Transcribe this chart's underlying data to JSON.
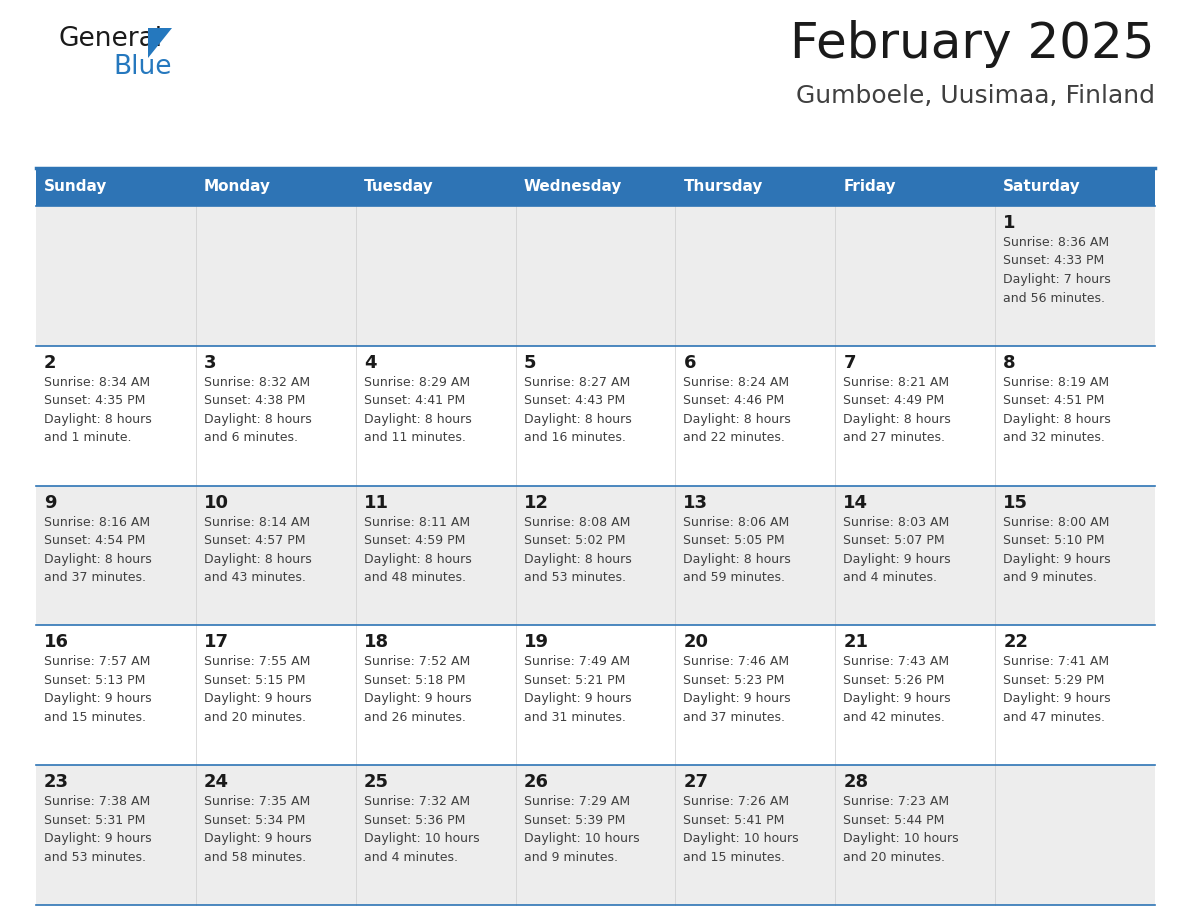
{
  "title": "February 2025",
  "subtitle": "Gumboele, Uusimaa, Finland",
  "header_bg": "#2E74B5",
  "header_text_color": "#FFFFFF",
  "header_font_size": 11,
  "day_names": [
    "Sunday",
    "Monday",
    "Tuesday",
    "Wednesday",
    "Thursday",
    "Friday",
    "Saturday"
  ],
  "title_font_size": 36,
  "subtitle_font_size": 18,
  "background_color": "#FFFFFF",
  "cell_bg_white": "#FFFFFF",
  "cell_bg_gray": "#EDEDED",
  "grid_color": "#2E74B5",
  "day_number_color": "#1a1a1a",
  "day_number_font_size": 13,
  "info_font_size": 9,
  "info_color": "#404040",
  "logo_black": "#1a1a1a",
  "logo_blue": "#2578BE",
  "weeks": [
    [
      {
        "day": null,
        "info": ""
      },
      {
        "day": null,
        "info": ""
      },
      {
        "day": null,
        "info": ""
      },
      {
        "day": null,
        "info": ""
      },
      {
        "day": null,
        "info": ""
      },
      {
        "day": null,
        "info": ""
      },
      {
        "day": 1,
        "info": "Sunrise: 8:36 AM\nSunset: 4:33 PM\nDaylight: 7 hours\nand 56 minutes."
      }
    ],
    [
      {
        "day": 2,
        "info": "Sunrise: 8:34 AM\nSunset: 4:35 PM\nDaylight: 8 hours\nand 1 minute."
      },
      {
        "day": 3,
        "info": "Sunrise: 8:32 AM\nSunset: 4:38 PM\nDaylight: 8 hours\nand 6 minutes."
      },
      {
        "day": 4,
        "info": "Sunrise: 8:29 AM\nSunset: 4:41 PM\nDaylight: 8 hours\nand 11 minutes."
      },
      {
        "day": 5,
        "info": "Sunrise: 8:27 AM\nSunset: 4:43 PM\nDaylight: 8 hours\nand 16 minutes."
      },
      {
        "day": 6,
        "info": "Sunrise: 8:24 AM\nSunset: 4:46 PM\nDaylight: 8 hours\nand 22 minutes."
      },
      {
        "day": 7,
        "info": "Sunrise: 8:21 AM\nSunset: 4:49 PM\nDaylight: 8 hours\nand 27 minutes."
      },
      {
        "day": 8,
        "info": "Sunrise: 8:19 AM\nSunset: 4:51 PM\nDaylight: 8 hours\nand 32 minutes."
      }
    ],
    [
      {
        "day": 9,
        "info": "Sunrise: 8:16 AM\nSunset: 4:54 PM\nDaylight: 8 hours\nand 37 minutes."
      },
      {
        "day": 10,
        "info": "Sunrise: 8:14 AM\nSunset: 4:57 PM\nDaylight: 8 hours\nand 43 minutes."
      },
      {
        "day": 11,
        "info": "Sunrise: 8:11 AM\nSunset: 4:59 PM\nDaylight: 8 hours\nand 48 minutes."
      },
      {
        "day": 12,
        "info": "Sunrise: 8:08 AM\nSunset: 5:02 PM\nDaylight: 8 hours\nand 53 minutes."
      },
      {
        "day": 13,
        "info": "Sunrise: 8:06 AM\nSunset: 5:05 PM\nDaylight: 8 hours\nand 59 minutes."
      },
      {
        "day": 14,
        "info": "Sunrise: 8:03 AM\nSunset: 5:07 PM\nDaylight: 9 hours\nand 4 minutes."
      },
      {
        "day": 15,
        "info": "Sunrise: 8:00 AM\nSunset: 5:10 PM\nDaylight: 9 hours\nand 9 minutes."
      }
    ],
    [
      {
        "day": 16,
        "info": "Sunrise: 7:57 AM\nSunset: 5:13 PM\nDaylight: 9 hours\nand 15 minutes."
      },
      {
        "day": 17,
        "info": "Sunrise: 7:55 AM\nSunset: 5:15 PM\nDaylight: 9 hours\nand 20 minutes."
      },
      {
        "day": 18,
        "info": "Sunrise: 7:52 AM\nSunset: 5:18 PM\nDaylight: 9 hours\nand 26 minutes."
      },
      {
        "day": 19,
        "info": "Sunrise: 7:49 AM\nSunset: 5:21 PM\nDaylight: 9 hours\nand 31 minutes."
      },
      {
        "day": 20,
        "info": "Sunrise: 7:46 AM\nSunset: 5:23 PM\nDaylight: 9 hours\nand 37 minutes."
      },
      {
        "day": 21,
        "info": "Sunrise: 7:43 AM\nSunset: 5:26 PM\nDaylight: 9 hours\nand 42 minutes."
      },
      {
        "day": 22,
        "info": "Sunrise: 7:41 AM\nSunset: 5:29 PM\nDaylight: 9 hours\nand 47 minutes."
      }
    ],
    [
      {
        "day": 23,
        "info": "Sunrise: 7:38 AM\nSunset: 5:31 PM\nDaylight: 9 hours\nand 53 minutes."
      },
      {
        "day": 24,
        "info": "Sunrise: 7:35 AM\nSunset: 5:34 PM\nDaylight: 9 hours\nand 58 minutes."
      },
      {
        "day": 25,
        "info": "Sunrise: 7:32 AM\nSunset: 5:36 PM\nDaylight: 10 hours\nand 4 minutes."
      },
      {
        "day": 26,
        "info": "Sunrise: 7:29 AM\nSunset: 5:39 PM\nDaylight: 10 hours\nand 9 minutes."
      },
      {
        "day": 27,
        "info": "Sunrise: 7:26 AM\nSunset: 5:41 PM\nDaylight: 10 hours\nand 15 minutes."
      },
      {
        "day": 28,
        "info": "Sunrise: 7:23 AM\nSunset: 5:44 PM\nDaylight: 10 hours\nand 20 minutes."
      },
      {
        "day": null,
        "info": ""
      }
    ]
  ],
  "week_bg_colors": [
    "#EDEDED",
    "#FFFFFF",
    "#EDEDED",
    "#FFFFFF",
    "#EDEDED"
  ]
}
